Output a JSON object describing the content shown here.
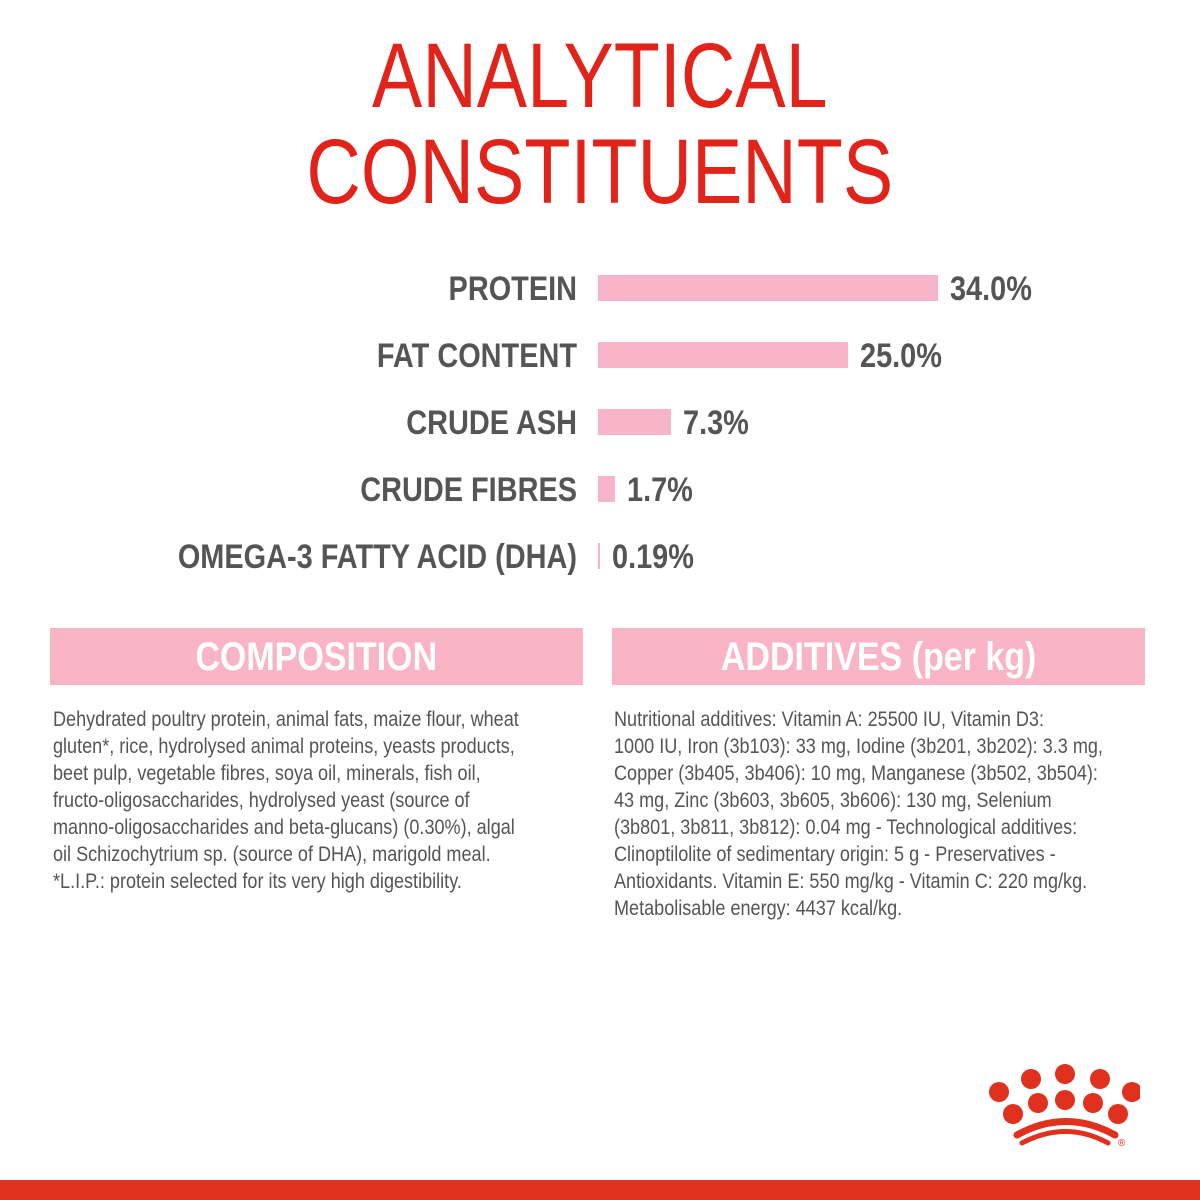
{
  "title": {
    "line1": "ANALYTICAL",
    "line2": "CONSTITUENTS"
  },
  "colors": {
    "title": "#e2231a",
    "bar": "#f8b4c8",
    "text": "#555555",
    "header": "#f9b4c6",
    "brand": "#e0301e"
  },
  "chart_data": {
    "type": "bar",
    "orientation": "horizontal",
    "categories": [
      "PROTEIN",
      "FAT CONTENT",
      "CRUDE ASH",
      "CRUDE FIBRES",
      "OMEGA-3 FATTY ACID (DHA)"
    ],
    "values": [
      34.0,
      25.0,
      7.3,
      1.7,
      0.19
    ],
    "data_labels": [
      "34.0%",
      "25.0%",
      "7.3%",
      "1.7%",
      "0.19%"
    ],
    "unit": "%",
    "grid": false
  },
  "composition": {
    "heading": "COMPOSITION",
    "lines": [
      "Dehydrated poultry protein, animal fats, maize flour, wheat",
      "gluten*, rice, hydrolysed animal proteins, yeasts products,",
      "beet pulp, vegetable fibres, soya oil, minerals, fish oil,",
      "fructo-oligosaccharides, hydrolysed yeast (source of",
      "manno-oligosaccharides and beta-glucans) (0.30%), algal",
      "oil Schizochytrium sp. (source of DHA), marigold meal.",
      "*L.I.P.: protein selected for its very high digestibility."
    ]
  },
  "additives": {
    "heading": "ADDITIVES (per kg)",
    "lines": [
      "Nutritional additives: Vitamin A: 25500 IU, Vitamin D3:",
      "1000 IU, Iron (3b103): 33 mg, Iodine (3b201, 3b202): 3.3 mg,",
      "Copper (3b405, 3b406): 10 mg, Manganese (3b502, 3b504):",
      "43 mg, Zinc (3b603, 3b605, 3b606): 130 mg, Selenium",
      "(3b801, 3b811, 3b812): 0.04 mg - Technological additives:",
      "Clinoptilolite of sedimentary origin: 5 g - Preservatives -",
      "Antioxidants. Vitamin E: 550 mg/kg - Vitamin C: 220 mg/kg.",
      "Metabolisable energy: 4437 kcal/kg."
    ]
  },
  "logo": {
    "icon": "royal-canin-crown-logo",
    "mark": "®"
  }
}
